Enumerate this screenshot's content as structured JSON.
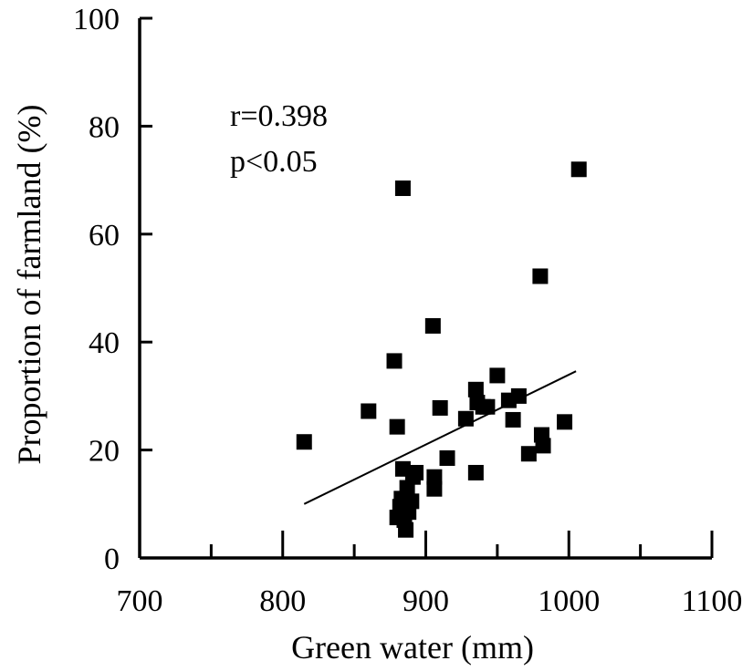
{
  "chart_data": {
    "type": "scatter",
    "xlabel": "Green water (mm)",
    "ylabel": "Proportion of farmland (%)",
    "xlim": [
      700,
      1100
    ],
    "ylim": [
      0,
      100
    ],
    "x_ticks": [
      700,
      800,
      900,
      1000,
      1100
    ],
    "x_minor_ticks": [
      750,
      850,
      950,
      1050
    ],
    "y_ticks": [
      0,
      20,
      40,
      60,
      80,
      100
    ],
    "grid": false,
    "annotations": [
      "r=0.398",
      "p<0.05"
    ],
    "trendline": {
      "x": [
        815,
        1005
      ],
      "y": [
        10.0,
        34.6
      ]
    },
    "points": [
      [
        815,
        21.5
      ],
      [
        860,
        27.2
      ],
      [
        878,
        36.5
      ],
      [
        880,
        24.3
      ],
      [
        880,
        7.5
      ],
      [
        882,
        9.5
      ],
      [
        883,
        11.0
      ],
      [
        884,
        16.5
      ],
      [
        884,
        68.5
      ],
      [
        885,
        7.0
      ],
      [
        886,
        5.2
      ],
      [
        887,
        13.0
      ],
      [
        888,
        8.5
      ],
      [
        890,
        10.5
      ],
      [
        891,
        15.0
      ],
      [
        893,
        15.8
      ],
      [
        905,
        43.0
      ],
      [
        906,
        12.8
      ],
      [
        906,
        15.0
      ],
      [
        910,
        27.8
      ],
      [
        915,
        18.5
      ],
      [
        928,
        25.8
      ],
      [
        935,
        31.2
      ],
      [
        935,
        15.8
      ],
      [
        936,
        28.8
      ],
      [
        940,
        28.0
      ],
      [
        943,
        28.0
      ],
      [
        950,
        33.8
      ],
      [
        958,
        29.2
      ],
      [
        961,
        25.6
      ],
      [
        965,
        30.0
      ],
      [
        972,
        19.3
      ],
      [
        980,
        52.2
      ],
      [
        981,
        22.8
      ],
      [
        982,
        20.8
      ],
      [
        997,
        25.2
      ],
      [
        1007,
        72.0
      ]
    ]
  }
}
